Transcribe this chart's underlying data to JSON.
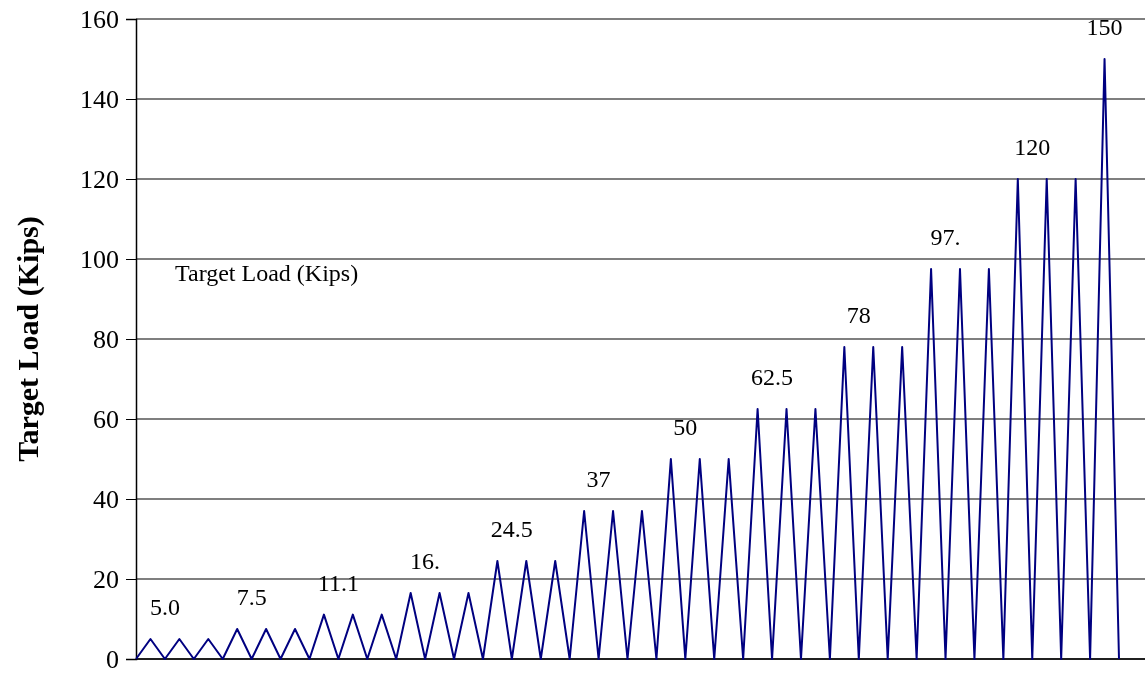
{
  "chart_data": {
    "type": "line",
    "ylabel": "Target Load (Kips)",
    "categories": [
      null,
      null,
      null,
      null,
      null,
      null,
      null,
      null,
      null,
      null,
      null,
      null,
      null,
      null,
      null,
      null,
      null,
      null,
      null,
      null,
      null,
      null,
      null,
      null,
      null,
      null,
      null,
      null,
      null,
      null,
      null,
      null,
      null,
      null,
      null,
      null,
      null,
      null,
      null,
      null,
      null,
      null,
      null,
      null,
      null,
      null,
      null,
      null,
      null,
      null,
      null,
      null,
      null,
      null,
      null,
      null,
      null,
      null,
      null,
      null,
      null,
      null,
      null,
      null,
      null,
      null,
      null,
      null,
      null
    ],
    "series": [
      {
        "color": "#000080",
        "values": [
          0,
          5,
          0,
          5,
          0,
          5,
          0,
          7.5,
          0,
          7.5,
          0,
          7.5,
          0,
          11.1,
          0,
          11.1,
          0,
          11.1,
          0,
          16.5,
          0,
          16.5,
          0,
          16.5,
          0,
          24.5,
          0,
          24.5,
          0,
          24.5,
          0,
          37,
          0,
          37,
          0,
          37,
          0,
          50,
          0,
          50,
          0,
          50,
          0,
          62.5,
          0,
          62.5,
          0,
          62.5,
          0,
          78,
          0,
          78,
          0,
          78,
          0,
          97.5,
          0,
          97.5,
          0,
          97.5,
          0,
          120,
          0,
          120,
          0,
          120,
          0,
          150,
          0
        ]
      }
    ],
    "ylim": [
      0,
      160
    ],
    "yticks": [
      0,
      20,
      40,
      60,
      80,
      100,
      120,
      140,
      160
    ],
    "grid": "y",
    "marker": "none",
    "line_style": "solid",
    "tick_labels": "y",
    "annotations": [
      "Target Load (Kips)",
      "5.0",
      "7.5",
      "11.1",
      "16.",
      "24.5",
      "37",
      "50",
      "62.5",
      "78",
      "97.",
      "120",
      "150"
    ]
  }
}
